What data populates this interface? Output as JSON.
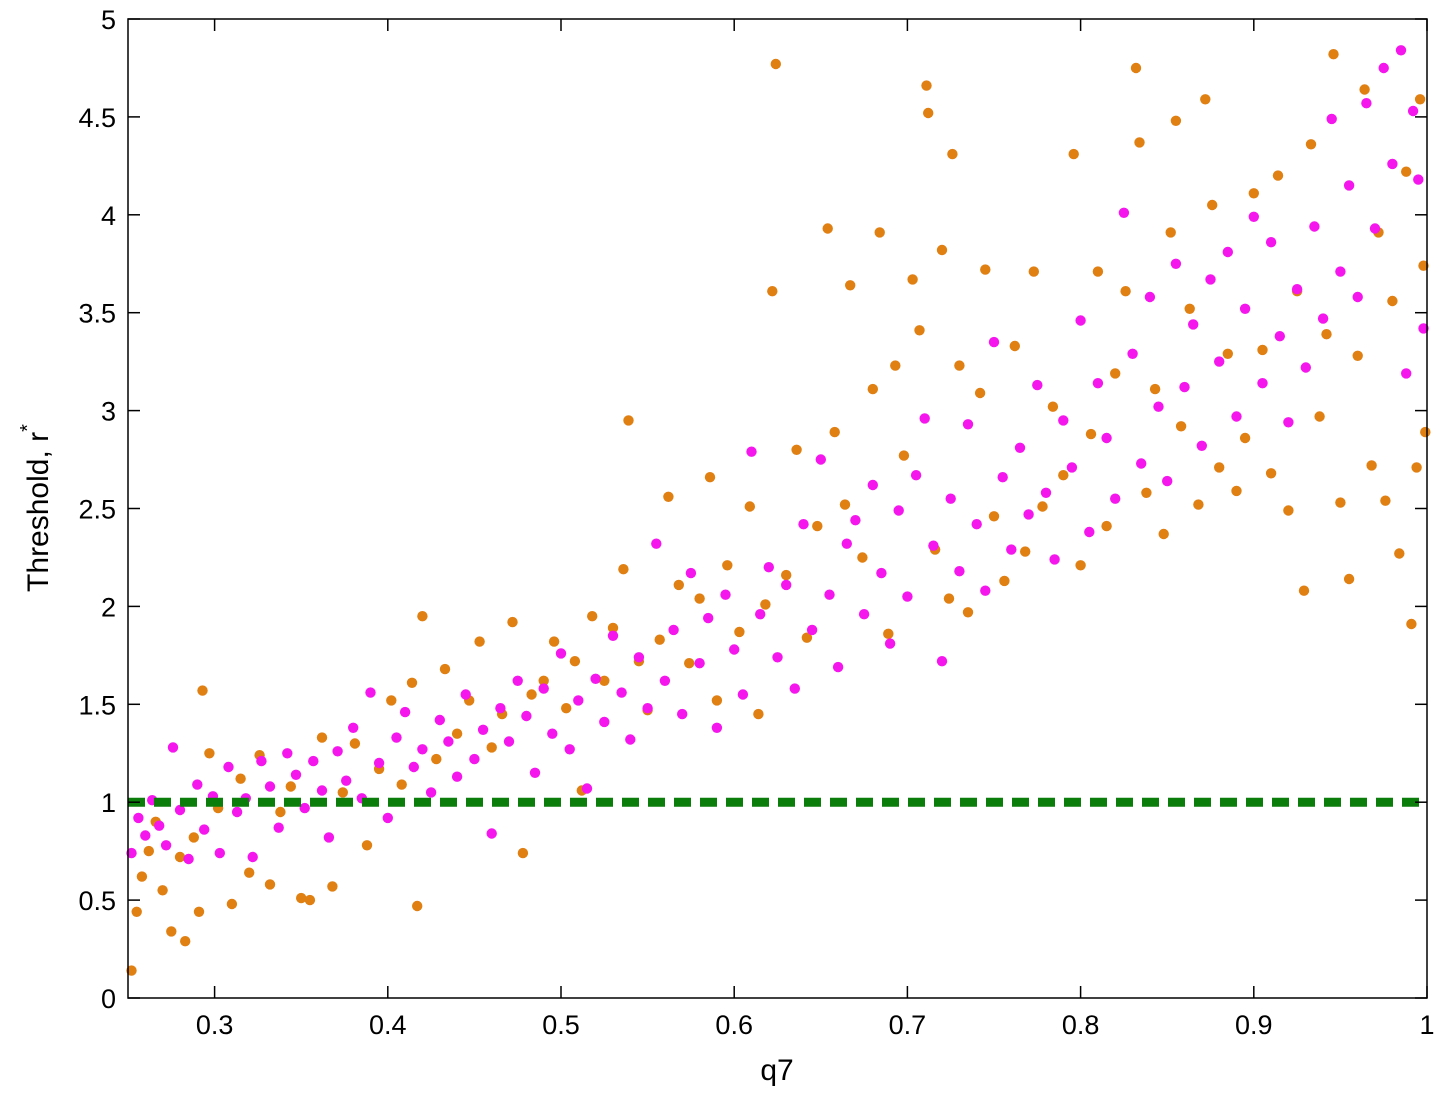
{
  "chart_data": {
    "type": "scatter",
    "xlabel": "q7",
    "ylabel": "Threshold, r",
    "ylabel_superscript": "*",
    "xlim": [
      0.25,
      1.0
    ],
    "ylim": [
      0,
      5
    ],
    "xticks": [
      0.3,
      0.4,
      0.5,
      0.6,
      0.7,
      0.8,
      0.9,
      1
    ],
    "xtick_labels": [
      "0.3",
      "0.4",
      "0.5",
      "0.6",
      "0.7",
      "0.8",
      "0.9",
      "1"
    ],
    "yticks": [
      0,
      0.5,
      1,
      1.5,
      2,
      2.5,
      3,
      3.5,
      4,
      4.5,
      5
    ],
    "ytick_labels": [
      "0",
      "0.5",
      "1",
      "1.5",
      "2",
      "2.5",
      "3",
      "3.5",
      "4",
      "4.5",
      "5"
    ],
    "grid": false,
    "reference_line": {
      "y": 1,
      "style": "dashed",
      "color": "#0a7d0a"
    },
    "series": [
      {
        "color": "#e07f12",
        "points": [
          [
            0.252,
            0.14
          ],
          [
            0.255,
            0.44
          ],
          [
            0.258,
            0.62
          ],
          [
            0.262,
            0.75
          ],
          [
            0.266,
            0.9
          ],
          [
            0.27,
            0.55
          ],
          [
            0.275,
            0.34
          ],
          [
            0.28,
            0.72
          ],
          [
            0.283,
            0.29
          ],
          [
            0.288,
            0.82
          ],
          [
            0.291,
            0.44
          ],
          [
            0.293,
            1.57
          ],
          [
            0.297,
            1.25
          ],
          [
            0.302,
            0.97
          ],
          [
            0.31,
            0.48
          ],
          [
            0.315,
            1.12
          ],
          [
            0.32,
            0.64
          ],
          [
            0.326,
            1.24
          ],
          [
            0.332,
            0.58
          ],
          [
            0.338,
            0.95
          ],
          [
            0.344,
            1.08
          ],
          [
            0.35,
            0.51
          ],
          [
            0.355,
            0.5
          ],
          [
            0.362,
            1.33
          ],
          [
            0.368,
            0.57
          ],
          [
            0.374,
            1.05
          ],
          [
            0.381,
            1.3
          ],
          [
            0.388,
            0.78
          ],
          [
            0.395,
            1.17
          ],
          [
            0.402,
            1.52
          ],
          [
            0.408,
            1.09
          ],
          [
            0.414,
            1.61
          ],
          [
            0.417,
            0.47
          ],
          [
            0.42,
            1.95
          ],
          [
            0.428,
            1.22
          ],
          [
            0.433,
            1.68
          ],
          [
            0.44,
            1.35
          ],
          [
            0.447,
            1.52
          ],
          [
            0.453,
            1.82
          ],
          [
            0.46,
            1.28
          ],
          [
            0.466,
            1.45
          ],
          [
            0.472,
            1.92
          ],
          [
            0.478,
            0.74
          ],
          [
            0.483,
            1.55
          ],
          [
            0.49,
            1.62
          ],
          [
            0.496,
            1.82
          ],
          [
            0.503,
            1.48
          ],
          [
            0.508,
            1.72
          ],
          [
            0.512,
            1.06
          ],
          [
            0.518,
            1.95
          ],
          [
            0.525,
            1.62
          ],
          [
            0.53,
            1.89
          ],
          [
            0.536,
            2.19
          ],
          [
            0.539,
            2.95
          ],
          [
            0.545,
            1.72
          ],
          [
            0.55,
            1.47
          ],
          [
            0.557,
            1.83
          ],
          [
            0.562,
            2.56
          ],
          [
            0.568,
            2.11
          ],
          [
            0.574,
            1.71
          ],
          [
            0.58,
            2.04
          ],
          [
            0.586,
            2.66
          ],
          [
            0.59,
            1.52
          ],
          [
            0.596,
            2.21
          ],
          [
            0.603,
            1.87
          ],
          [
            0.609,
            2.51
          ],
          [
            0.614,
            1.45
          ],
          [
            0.618,
            2.01
          ],
          [
            0.622,
            3.61
          ],
          [
            0.624,
            4.77
          ],
          [
            0.63,
            2.16
          ],
          [
            0.636,
            2.8
          ],
          [
            0.642,
            1.84
          ],
          [
            0.648,
            2.41
          ],
          [
            0.654,
            3.93
          ],
          [
            0.658,
            2.89
          ],
          [
            0.664,
            2.52
          ],
          [
            0.667,
            3.64
          ],
          [
            0.674,
            2.25
          ],
          [
            0.68,
            3.11
          ],
          [
            0.684,
            3.91
          ],
          [
            0.689,
            1.86
          ],
          [
            0.693,
            3.23
          ],
          [
            0.698,
            2.77
          ],
          [
            0.703,
            3.67
          ],
          [
            0.707,
            3.41
          ],
          [
            0.711,
            4.66
          ],
          [
            0.712,
            4.52
          ],
          [
            0.716,
            2.29
          ],
          [
            0.72,
            3.82
          ],
          [
            0.724,
            2.04
          ],
          [
            0.726,
            4.31
          ],
          [
            0.73,
            3.23
          ],
          [
            0.735,
            1.97
          ],
          [
            0.742,
            3.09
          ],
          [
            0.745,
            3.72
          ],
          [
            0.75,
            2.46
          ],
          [
            0.756,
            2.13
          ],
          [
            0.762,
            3.33
          ],
          [
            0.768,
            2.28
          ],
          [
            0.773,
            3.71
          ],
          [
            0.778,
            2.51
          ],
          [
            0.784,
            3.02
          ],
          [
            0.79,
            2.67
          ],
          [
            0.796,
            4.31
          ],
          [
            0.8,
            2.21
          ],
          [
            0.806,
            2.88
          ],
          [
            0.81,
            3.71
          ],
          [
            0.815,
            2.41
          ],
          [
            0.82,
            3.19
          ],
          [
            0.826,
            3.61
          ],
          [
            0.832,
            4.75
          ],
          [
            0.834,
            4.37
          ],
          [
            0.838,
            2.58
          ],
          [
            0.843,
            3.11
          ],
          [
            0.848,
            2.37
          ],
          [
            0.852,
            3.91
          ],
          [
            0.855,
            4.48
          ],
          [
            0.858,
            2.92
          ],
          [
            0.863,
            3.52
          ],
          [
            0.868,
            2.52
          ],
          [
            0.872,
            4.59
          ],
          [
            0.876,
            4.05
          ],
          [
            0.88,
            2.71
          ],
          [
            0.885,
            3.29
          ],
          [
            0.89,
            2.59
          ],
          [
            0.895,
            2.86
          ],
          [
            0.9,
            4.11
          ],
          [
            0.905,
            3.31
          ],
          [
            0.91,
            2.68
          ],
          [
            0.914,
            4.2
          ],
          [
            0.92,
            2.49
          ],
          [
            0.925,
            3.61
          ],
          [
            0.929,
            2.08
          ],
          [
            0.933,
            4.36
          ],
          [
            0.938,
            2.97
          ],
          [
            0.942,
            3.39
          ],
          [
            0.946,
            4.82
          ],
          [
            0.95,
            2.53
          ],
          [
            0.955,
            2.14
          ],
          [
            0.96,
            3.28
          ],
          [
            0.964,
            4.64
          ],
          [
            0.968,
            2.72
          ],
          [
            0.972,
            3.91
          ],
          [
            0.976,
            2.54
          ],
          [
            0.98,
            3.56
          ],
          [
            0.984,
            2.27
          ],
          [
            0.988,
            4.22
          ],
          [
            0.991,
            1.91
          ],
          [
            0.994,
            2.71
          ],
          [
            0.996,
            4.59
          ],
          [
            0.998,
            3.74
          ],
          [
            0.999,
            2.89
          ]
        ]
      },
      {
        "color": "#f516ed",
        "points": [
          [
            0.252,
            0.74
          ],
          [
            0.256,
            0.92
          ],
          [
            0.26,
            0.83
          ],
          [
            0.264,
            1.01
          ],
          [
            0.268,
            0.88
          ],
          [
            0.272,
            0.78
          ],
          [
            0.276,
            1.28
          ],
          [
            0.28,
            0.96
          ],
          [
            0.285,
            0.71
          ],
          [
            0.29,
            1.09
          ],
          [
            0.294,
            0.86
          ],
          [
            0.299,
            1.03
          ],
          [
            0.303,
            0.74
          ],
          [
            0.308,
            1.18
          ],
          [
            0.313,
            0.95
          ],
          [
            0.318,
            1.02
          ],
          [
            0.322,
            0.72
          ],
          [
            0.327,
            1.21
          ],
          [
            0.332,
            1.08
          ],
          [
            0.337,
            0.87
          ],
          [
            0.342,
            1.25
          ],
          [
            0.347,
            1.14
          ],
          [
            0.352,
            0.97
          ],
          [
            0.357,
            1.21
          ],
          [
            0.362,
            1.06
          ],
          [
            0.366,
            0.82
          ],
          [
            0.371,
            1.26
          ],
          [
            0.376,
            1.11
          ],
          [
            0.38,
            1.38
          ],
          [
            0.385,
            1.02
          ],
          [
            0.39,
            1.56
          ],
          [
            0.395,
            1.2
          ],
          [
            0.4,
            0.92
          ],
          [
            0.405,
            1.33
          ],
          [
            0.41,
            1.46
          ],
          [
            0.415,
            1.18
          ],
          [
            0.42,
            1.27
          ],
          [
            0.425,
            1.05
          ],
          [
            0.43,
            1.42
          ],
          [
            0.435,
            1.31
          ],
          [
            0.44,
            1.13
          ],
          [
            0.445,
            1.55
          ],
          [
            0.45,
            1.22
          ],
          [
            0.455,
            1.37
          ],
          [
            0.46,
            0.84
          ],
          [
            0.465,
            1.48
          ],
          [
            0.47,
            1.31
          ],
          [
            0.475,
            1.62
          ],
          [
            0.48,
            1.44
          ],
          [
            0.485,
            1.15
          ],
          [
            0.49,
            1.58
          ],
          [
            0.495,
            1.35
          ],
          [
            0.5,
            1.76
          ],
          [
            0.505,
            1.27
          ],
          [
            0.51,
            1.52
          ],
          [
            0.515,
            1.07
          ],
          [
            0.52,
            1.63
          ],
          [
            0.525,
            1.41
          ],
          [
            0.53,
            1.85
          ],
          [
            0.535,
            1.56
          ],
          [
            0.54,
            1.32
          ],
          [
            0.545,
            1.74
          ],
          [
            0.55,
            1.48
          ],
          [
            0.555,
            2.32
          ],
          [
            0.56,
            1.62
          ],
          [
            0.565,
            1.88
          ],
          [
            0.57,
            1.45
          ],
          [
            0.575,
            2.17
          ],
          [
            0.58,
            1.71
          ],
          [
            0.585,
            1.94
          ],
          [
            0.59,
            1.38
          ],
          [
            0.595,
            2.06
          ],
          [
            0.6,
            1.78
          ],
          [
            0.605,
            1.55
          ],
          [
            0.61,
            2.79
          ],
          [
            0.615,
            1.96
          ],
          [
            0.62,
            2.2
          ],
          [
            0.625,
            1.74
          ],
          [
            0.63,
            2.11
          ],
          [
            0.635,
            1.58
          ],
          [
            0.64,
            2.42
          ],
          [
            0.645,
            1.88
          ],
          [
            0.65,
            2.75
          ],
          [
            0.655,
            2.06
          ],
          [
            0.66,
            1.69
          ],
          [
            0.665,
            2.32
          ],
          [
            0.67,
            2.44
          ],
          [
            0.675,
            1.96
          ],
          [
            0.68,
            2.62
          ],
          [
            0.685,
            2.17
          ],
          [
            0.69,
            1.81
          ],
          [
            0.695,
            2.49
          ],
          [
            0.7,
            2.05
          ],
          [
            0.705,
            2.67
          ],
          [
            0.71,
            2.96
          ],
          [
            0.715,
            2.31
          ],
          [
            0.72,
            1.72
          ],
          [
            0.725,
            2.55
          ],
          [
            0.73,
            2.18
          ],
          [
            0.735,
            2.93
          ],
          [
            0.74,
            2.42
          ],
          [
            0.745,
            2.08
          ],
          [
            0.75,
            3.35
          ],
          [
            0.755,
            2.66
          ],
          [
            0.76,
            2.29
          ],
          [
            0.765,
            2.81
          ],
          [
            0.77,
            2.47
          ],
          [
            0.775,
            3.13
          ],
          [
            0.78,
            2.58
          ],
          [
            0.785,
            2.24
          ],
          [
            0.79,
            2.95
          ],
          [
            0.795,
            2.71
          ],
          [
            0.8,
            3.46
          ],
          [
            0.805,
            2.38
          ],
          [
            0.81,
            3.14
          ],
          [
            0.815,
            2.86
          ],
          [
            0.82,
            2.55
          ],
          [
            0.825,
            4.01
          ],
          [
            0.83,
            3.29
          ],
          [
            0.835,
            2.73
          ],
          [
            0.84,
            3.58
          ],
          [
            0.845,
            3.02
          ],
          [
            0.85,
            2.64
          ],
          [
            0.855,
            3.75
          ],
          [
            0.86,
            3.12
          ],
          [
            0.865,
            3.44
          ],
          [
            0.87,
            2.82
          ],
          [
            0.875,
            3.67
          ],
          [
            0.88,
            3.25
          ],
          [
            0.885,
            3.81
          ],
          [
            0.89,
            2.97
          ],
          [
            0.895,
            3.52
          ],
          [
            0.9,
            3.99
          ],
          [
            0.905,
            3.14
          ],
          [
            0.91,
            3.86
          ],
          [
            0.915,
            3.38
          ],
          [
            0.92,
            2.94
          ],
          [
            0.925,
            3.62
          ],
          [
            0.93,
            3.22
          ],
          [
            0.935,
            3.94
          ],
          [
            0.94,
            3.47
          ],
          [
            0.945,
            4.49
          ],
          [
            0.95,
            3.71
          ],
          [
            0.955,
            4.15
          ],
          [
            0.96,
            3.58
          ],
          [
            0.965,
            4.57
          ],
          [
            0.97,
            3.93
          ],
          [
            0.975,
            4.75
          ],
          [
            0.98,
            4.26
          ],
          [
            0.985,
            4.84
          ],
          [
            0.988,
            3.19
          ],
          [
            0.992,
            4.53
          ],
          [
            0.995,
            4.18
          ],
          [
            0.998,
            3.42
          ]
        ]
      }
    ]
  }
}
